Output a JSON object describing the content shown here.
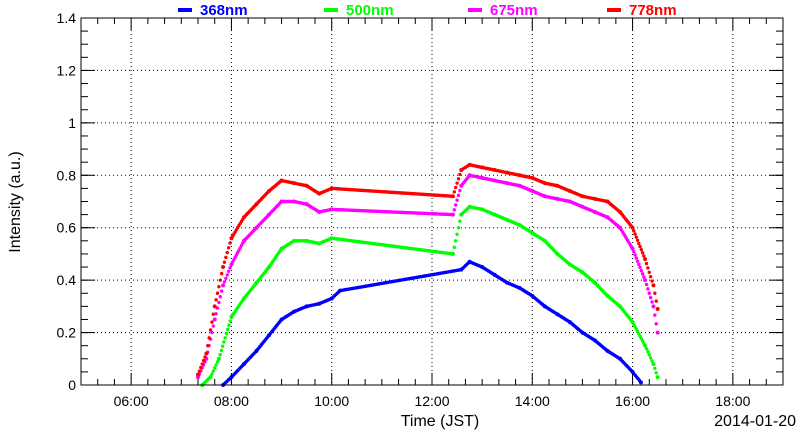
{
  "chart_data": {
    "type": "scatter",
    "title": "",
    "xlabel": "Time (JST)",
    "ylabel": "Intensity (a.u.)",
    "date_label": "2014-01-20",
    "xlim": [
      "05:00",
      "19:00"
    ],
    "ylim": [
      0,
      1.4
    ],
    "grid": true,
    "legend_position": "top",
    "x_ticks": [
      "06:00",
      "08:00",
      "10:00",
      "12:00",
      "14:00",
      "16:00",
      "18:00"
    ],
    "y_ticks": [
      "0",
      "0.2",
      "0.4",
      "0.6",
      "0.8",
      "1",
      "1.2",
      "1.4"
    ],
    "series": [
      {
        "name": "368nm",
        "color": "#0000ff",
        "x": [
          "07:50",
          "08:00",
          "08:15",
          "08:30",
          "08:45",
          "09:00",
          "09:15",
          "09:30",
          "09:45",
          "10:00",
          "10:10",
          "12:35",
          "12:45",
          "13:00",
          "13:15",
          "13:30",
          "13:45",
          "14:00",
          "14:15",
          "14:30",
          "14:45",
          "15:00",
          "15:15",
          "15:30",
          "15:45",
          "16:00",
          "16:10"
        ],
        "y": [
          0.0,
          0.03,
          0.08,
          0.13,
          0.19,
          0.25,
          0.28,
          0.3,
          0.31,
          0.33,
          0.36,
          0.44,
          0.47,
          0.45,
          0.42,
          0.39,
          0.37,
          0.34,
          0.3,
          0.27,
          0.24,
          0.2,
          0.17,
          0.13,
          0.1,
          0.05,
          0.01
        ]
      },
      {
        "name": "500nm",
        "color": "#00ff00",
        "x": [
          "07:25",
          "07:35",
          "07:45",
          "08:00",
          "08:15",
          "08:30",
          "08:45",
          "09:00",
          "09:15",
          "09:30",
          "09:45",
          "10:00",
          "12:25",
          "12:35",
          "12:45",
          "13:00",
          "13:15",
          "13:30",
          "13:45",
          "14:00",
          "14:15",
          "14:30",
          "14:45",
          "15:00",
          "15:15",
          "15:30",
          "15:45",
          "16:00",
          "16:15",
          "16:25",
          "16:30"
        ],
        "y": [
          0.0,
          0.03,
          0.1,
          0.26,
          0.33,
          0.39,
          0.45,
          0.52,
          0.55,
          0.55,
          0.54,
          0.56,
          0.5,
          0.65,
          0.68,
          0.67,
          0.65,
          0.63,
          0.61,
          0.58,
          0.55,
          0.5,
          0.46,
          0.43,
          0.39,
          0.34,
          0.3,
          0.24,
          0.15,
          0.08,
          0.03
        ]
      },
      {
        "name": "675nm",
        "color": "#ff00ff",
        "x": [
          "07:20",
          "07:30",
          "07:40",
          "07:50",
          "08:00",
          "08:15",
          "08:30",
          "08:45",
          "09:00",
          "09:15",
          "09:30",
          "09:45",
          "10:00",
          "12:25",
          "12:35",
          "12:45",
          "13:00",
          "13:15",
          "13:30",
          "13:45",
          "14:00",
          "14:15",
          "14:30",
          "14:45",
          "15:00",
          "15:15",
          "15:30",
          "15:45",
          "16:00",
          "16:15",
          "16:25",
          "16:30"
        ],
        "y": [
          0.03,
          0.1,
          0.25,
          0.38,
          0.46,
          0.55,
          0.6,
          0.65,
          0.7,
          0.7,
          0.69,
          0.66,
          0.67,
          0.65,
          0.76,
          0.8,
          0.79,
          0.78,
          0.77,
          0.76,
          0.74,
          0.72,
          0.71,
          0.7,
          0.68,
          0.66,
          0.64,
          0.6,
          0.52,
          0.4,
          0.3,
          0.2
        ]
      },
      {
        "name": "778nm",
        "color": "#ff0000",
        "x": [
          "07:20",
          "07:30",
          "07:40",
          "07:50",
          "08:00",
          "08:15",
          "08:30",
          "08:45",
          "09:00",
          "09:15",
          "09:30",
          "09:45",
          "10:00",
          "12:25",
          "12:35",
          "12:45",
          "13:00",
          "13:15",
          "13:30",
          "13:45",
          "14:00",
          "14:15",
          "14:30",
          "14:45",
          "15:00",
          "15:15",
          "15:30",
          "15:45",
          "16:00",
          "16:15",
          "16:25",
          "16:30"
        ],
        "y": [
          0.04,
          0.12,
          0.3,
          0.45,
          0.56,
          0.64,
          0.69,
          0.74,
          0.78,
          0.77,
          0.76,
          0.73,
          0.75,
          0.72,
          0.82,
          0.84,
          0.83,
          0.82,
          0.81,
          0.8,
          0.79,
          0.77,
          0.76,
          0.74,
          0.72,
          0.71,
          0.7,
          0.66,
          0.6,
          0.48,
          0.38,
          0.29
        ]
      }
    ]
  }
}
